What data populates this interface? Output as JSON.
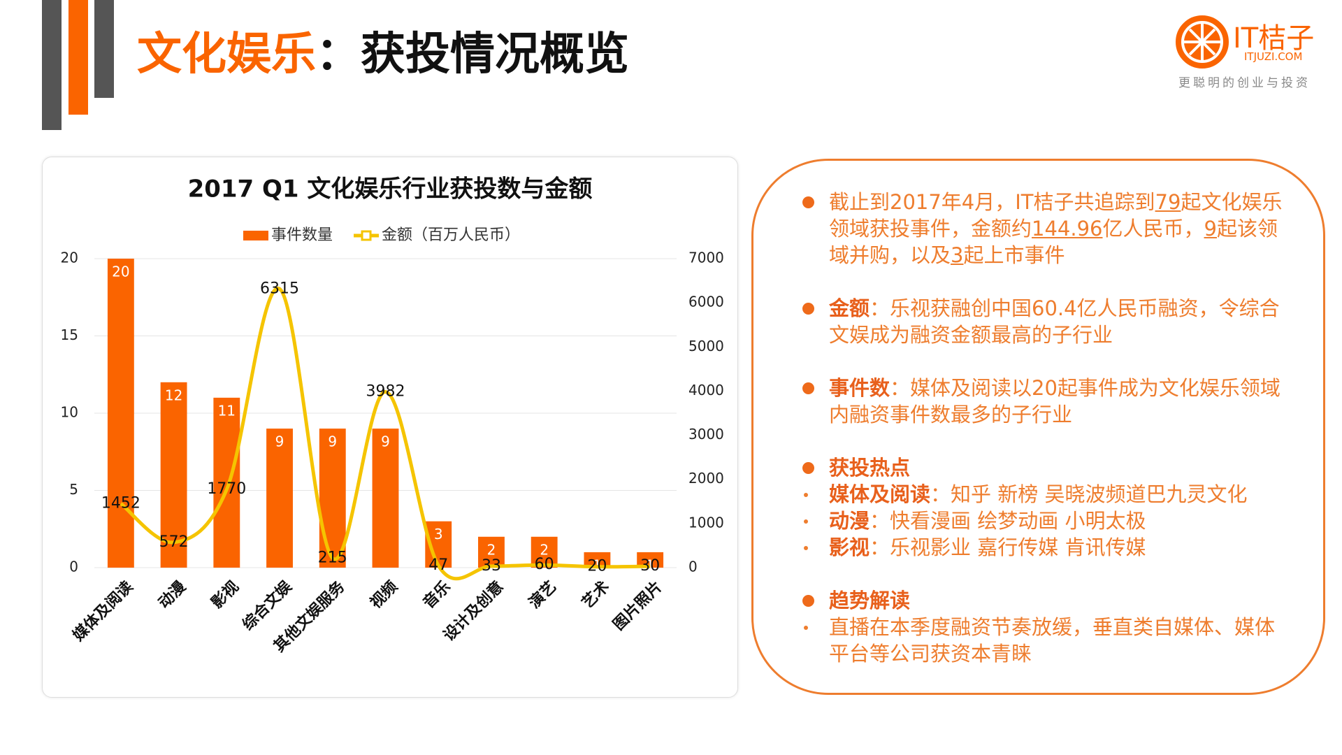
{
  "header": {
    "title_highlight": "文化娱乐",
    "title_rest": "：获投情况概览"
  },
  "logo": {
    "name": "IT桔子",
    "url": "ITJUZI.COM",
    "slogan": "更聪明的创业与投资"
  },
  "chart_data": {
    "type": "bar_line",
    "title": "2017 Q1 文化娱乐行业获投数与金额",
    "categories": [
      "媒体及阅读",
      "动漫",
      "影视",
      "综合文娱",
      "其他文娱服务",
      "视频",
      "音乐",
      "设计及创意",
      "演艺",
      "艺术",
      "图片照片"
    ],
    "series": [
      {
        "name": "事件数量",
        "color": "#fa6400",
        "type": "bar",
        "values": [
          20,
          12,
          11,
          9,
          9,
          9,
          3,
          2,
          2,
          1,
          1
        ]
      },
      {
        "name": "金额（百万人民币）",
        "color": "#f5c400",
        "type": "line",
        "axis": "y2",
        "values": [
          1452,
          572,
          1770,
          6315,
          215,
          3982,
          47,
          33,
          60,
          20,
          30
        ]
      }
    ],
    "ylim": [
      0,
      20
    ],
    "yticks": [
      0,
      5,
      10,
      15,
      20
    ],
    "y2lim": [
      0,
      7000
    ],
    "y2ticks": [
      0,
      1000,
      2000,
      3000,
      4000,
      5000,
      6000,
      7000
    ],
    "grid": true,
    "legend": "top"
  },
  "panel": {
    "items": [
      {
        "segments": [
          "截止到2017年4月，IT桔子共追踪到",
          "79",
          "起文化娱乐领域获投事件，金额约",
          "144.96",
          "亿人民币，",
          "9",
          "起该领域并购，以及",
          "3",
          "起上市事件"
        ]
      },
      {
        "label": "金额",
        "text": "：乐视获融创中国60.4亿人民币融资，令综合文娱成为融资金额最高的子行业"
      },
      {
        "label": "事件数",
        "text": "：媒体及阅读以20起事件成为文化娱乐领域内融资事件数最多的子行业"
      },
      {
        "label": "获投热点",
        "subitems": [
          {
            "label": "媒体及阅读",
            "text": "：知乎 新榜 吴晓波频道巴九灵文化"
          },
          {
            "label": "动漫",
            "text": "：快看漫画 绘梦动画 小明太极"
          },
          {
            "label": "影视",
            "text": "：乐视影业 嘉行传媒 肯讯传媒"
          }
        ]
      },
      {
        "label": "趋势解读",
        "subitems": [
          {
            "text": "直播在本季度融资节奏放缓，垂直类自媒体、媒体平台等公司获资本青睐"
          }
        ]
      }
    ]
  }
}
